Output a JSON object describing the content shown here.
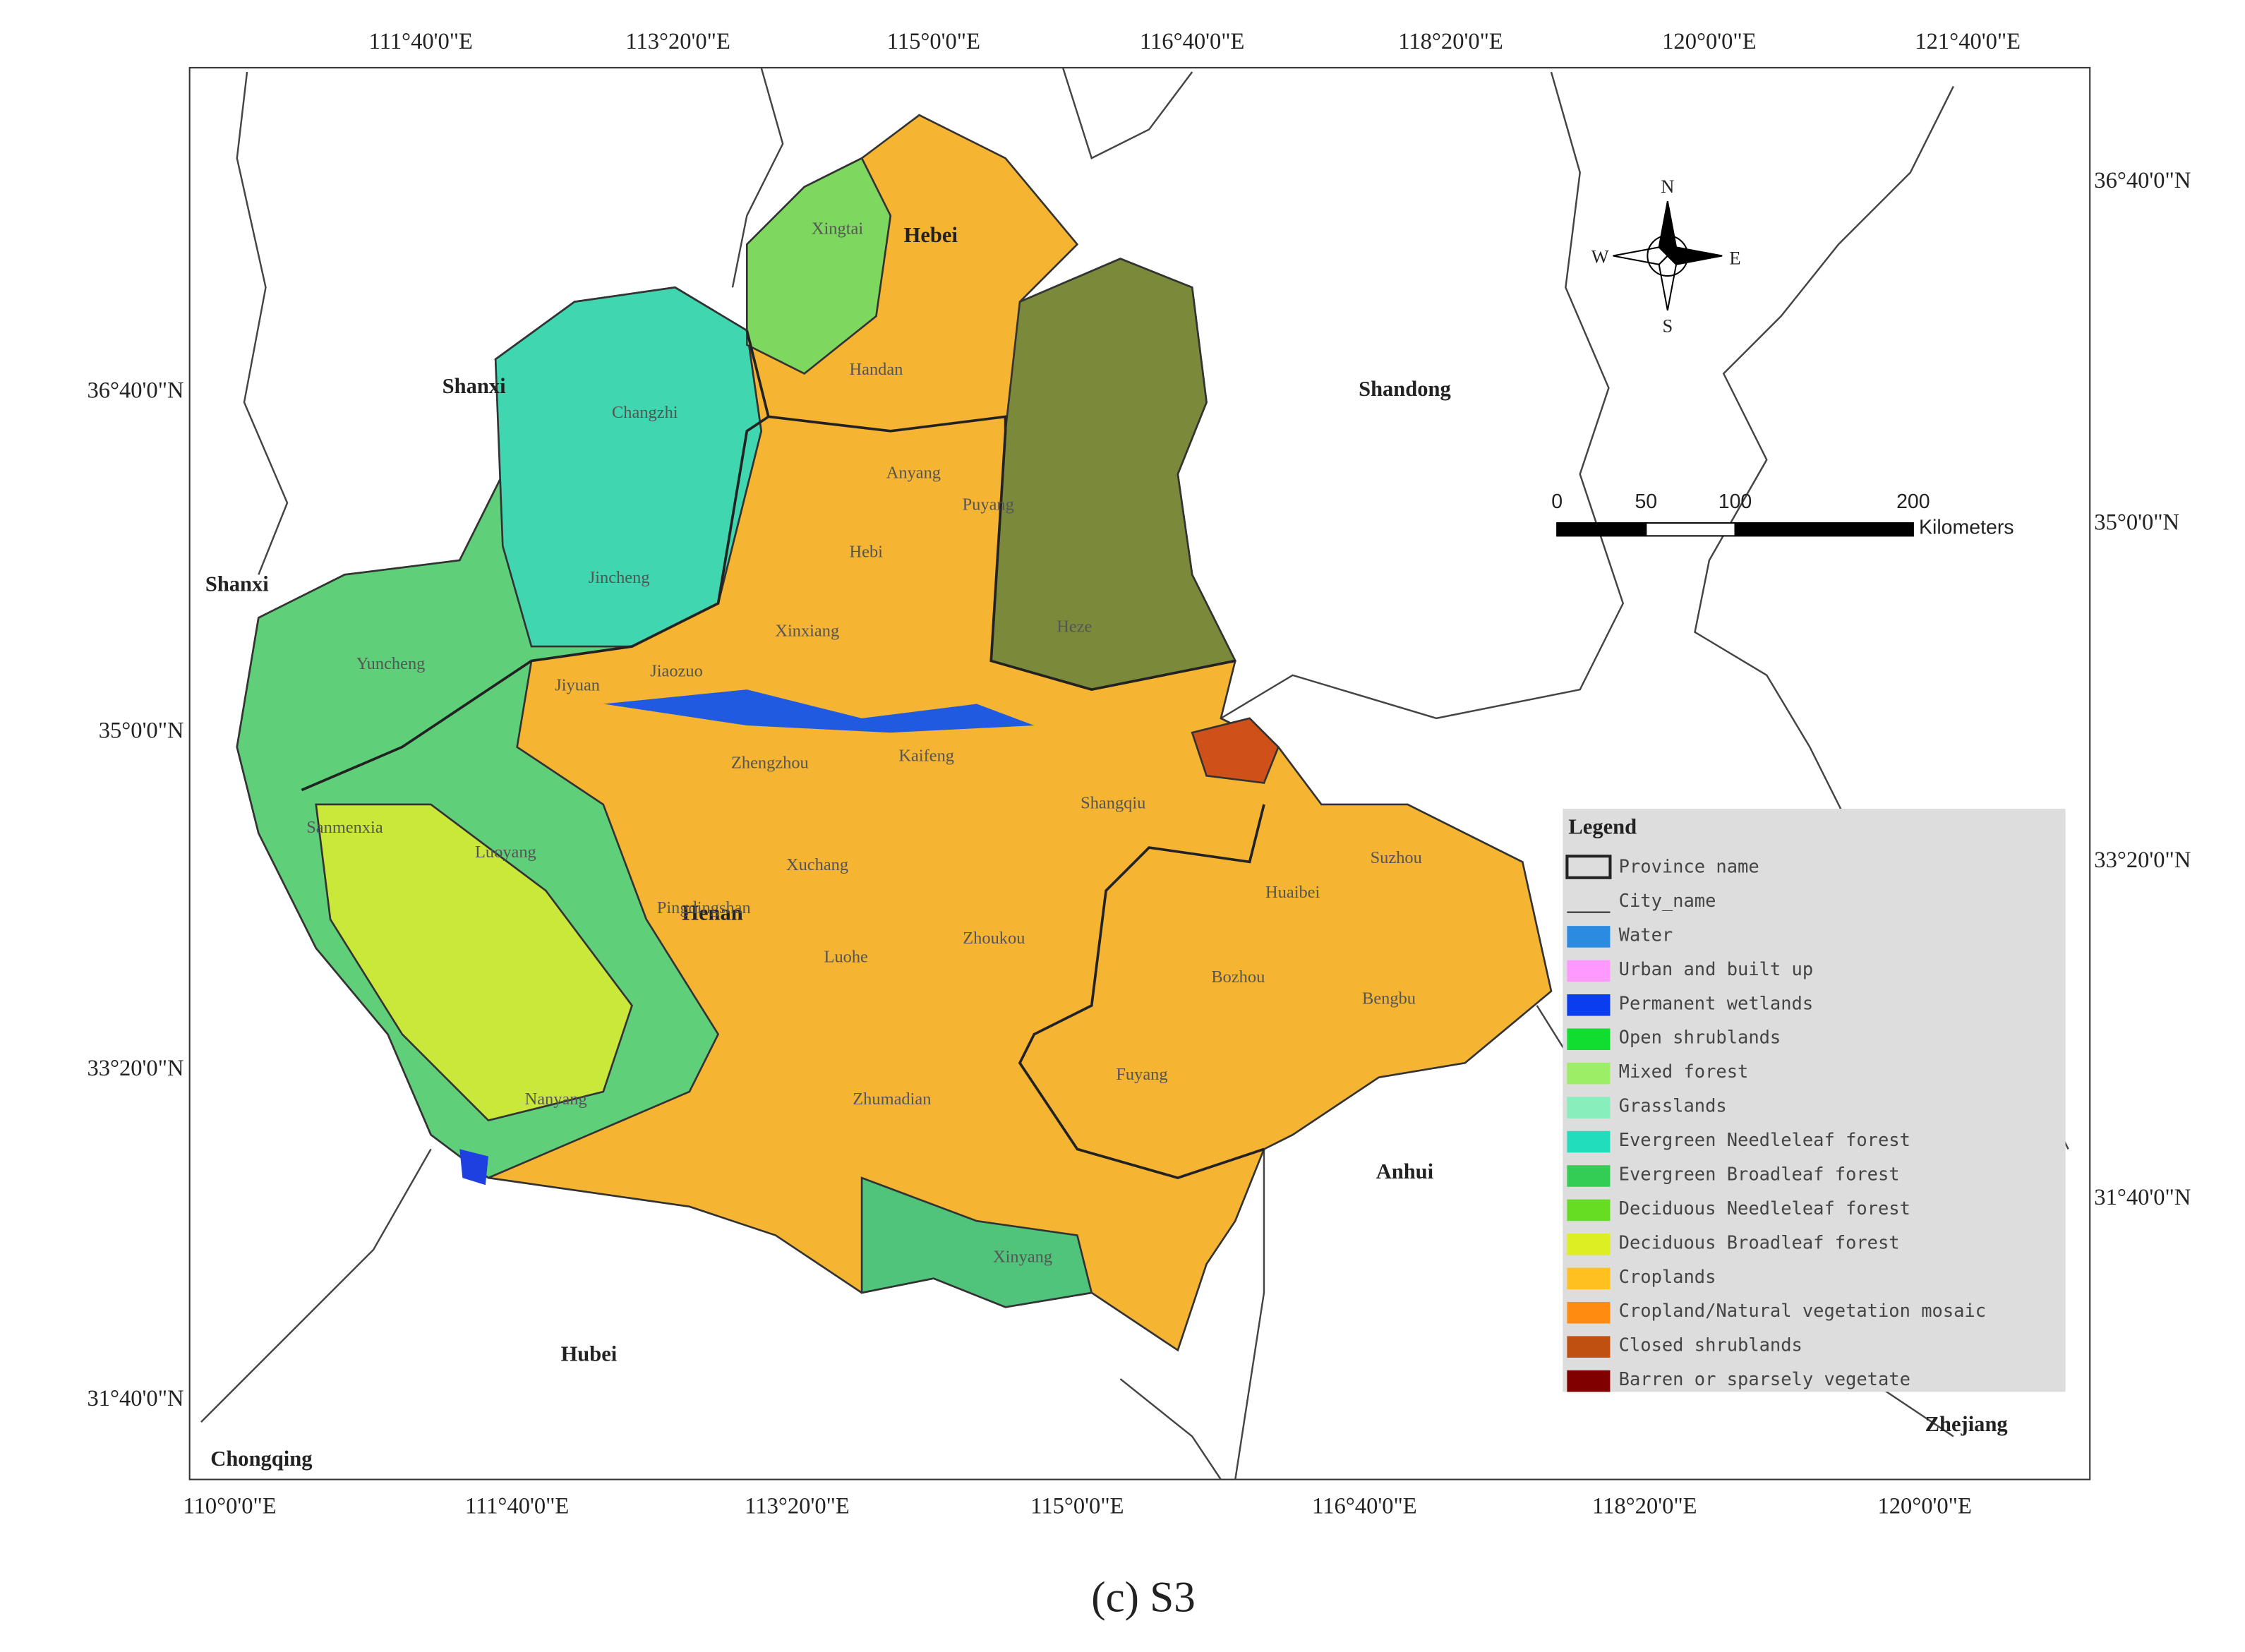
{
  "axis_labels": {
    "top": [
      "111°40'0\"E",
      "113°20'0\"E",
      "115°0'0\"E",
      "116°40'0\"E",
      "118°20'0\"E",
      "120°0'0\"E",
      "121°40'0\"E"
    ],
    "bottom": [
      "110°0'0\"E",
      "111°40'0\"E",
      "113°20'0\"E",
      "115°0'0\"E",
      "116°40'0\"E",
      "118°20'0\"E",
      "120°0'0\"E"
    ],
    "left": [
      "36°40'0\"N",
      "35°0'0\"N",
      "33°20'0\"N",
      "31°40'0\"N"
    ],
    "right": [
      "36°40'0\"N",
      "35°0'0\"N",
      "33°20'0\"N",
      "31°40'0\"N"
    ]
  },
  "provinces": [
    "Shanxi",
    "Shanxi",
    "Shandong",
    "Henan",
    "Hubei",
    "Anhui",
    "Chongqing",
    "Zhejiang",
    "Hebei"
  ],
  "cities": [
    "Xingtai",
    "Handan",
    "Changzhi",
    "Anyang",
    "Puyang",
    "Hebi",
    "Jincheng",
    "Xinxiang",
    "Yuncheng",
    "Jiyuan",
    "Jiaozuo",
    "Heze",
    "Zhengzhou",
    "Kaifeng",
    "Shangqiu",
    "Sanmenxia",
    "Luoyang",
    "Xuchang",
    "Suzhou",
    "Huaibei",
    "Pingdingshan",
    "Zhoukou",
    "Luohe",
    "Bozhou",
    "Bengbu",
    "Fuyang",
    "Nanyang",
    "Zhumadian",
    "Xinyang"
  ],
  "compass": [
    "N",
    "S",
    "E",
    "W"
  ],
  "scale_bar": {
    "ticks": [
      "0",
      "50",
      "100",
      "200"
    ],
    "unit": "Kilometers"
  },
  "legend": {
    "title": "Legend",
    "symbols": [
      "Province name",
      "City_name"
    ],
    "classes": [
      {
        "label": "Water",
        "color": "#2a8be0"
      },
      {
        "label": "Urban and built up",
        "color": "#ff99ff"
      },
      {
        "label": "Permanent wetlands",
        "color": "#0a3cf0"
      },
      {
        "label": "Open shrublands",
        "color": "#10dd30"
      },
      {
        "label": "Mixed forest",
        "color": "#9cee66"
      },
      {
        "label": "Grasslands",
        "color": "#88eebb"
      },
      {
        "label": "Evergreen Needleleaf forest",
        "color": "#22ddbb"
      },
      {
        "label": "Evergreen Broadleaf forest",
        "color": "#33cc55"
      },
      {
        "label": "Deciduous Needleleaf forest",
        "color": "#66dd22"
      },
      {
        "label": "Deciduous Broadleaf forest",
        "color": "#ddee22"
      },
      {
        "label": "Croplands",
        "color": "#ffc020"
      },
      {
        "label": "Cropland/Natural vegetation mosaic",
        "color": "#ff8c10"
      },
      {
        "label": "Closed shrublands",
        "color": "#c05010"
      },
      {
        "label": "Barren or sparsely vegetate",
        "color": "#800000"
      }
    ]
  },
  "caption": "(c) S3"
}
